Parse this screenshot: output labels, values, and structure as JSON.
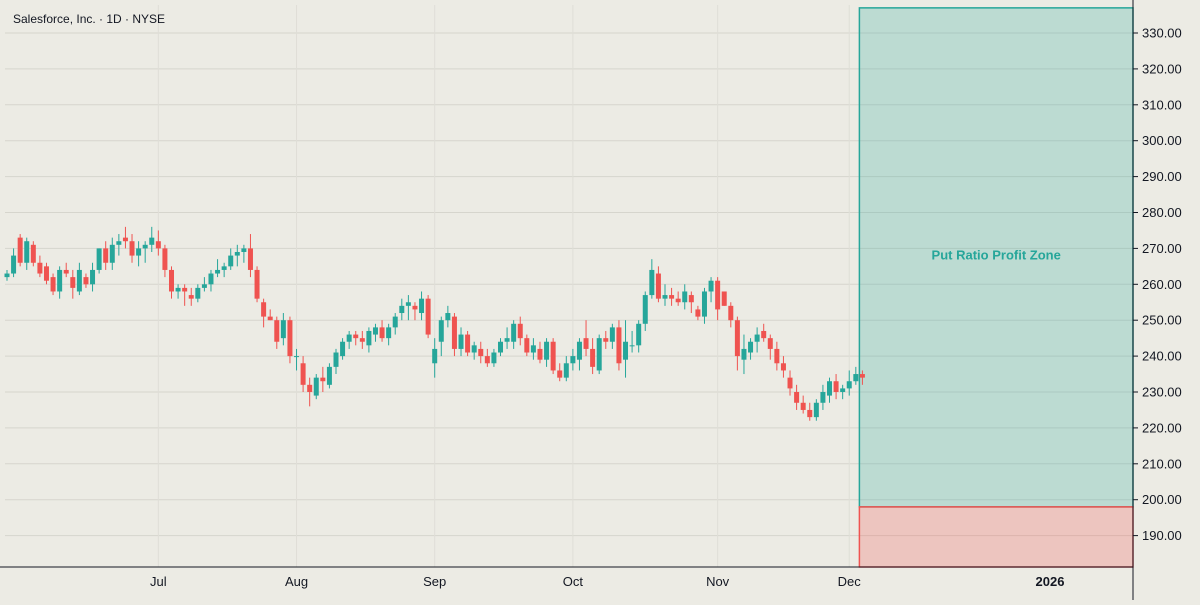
{
  "title": "Salesforce, Inc. · 1D · NYSE",
  "colors": {
    "up": "#26a69a",
    "down": "#ef5350",
    "profit_zone": "#26a69a",
    "loss_zone": "#ef5350",
    "background": "#ecebe4"
  },
  "chart_data": {
    "type": "candlestick",
    "title": "Salesforce, Inc. · 1D · NYSE",
    "ylim": [
      181,
      337
    ],
    "y_ticks": [
      190,
      200,
      210,
      220,
      230,
      240,
      250,
      260,
      270,
      280,
      290,
      300,
      310,
      320,
      330
    ],
    "y_tick_labels": [
      "190.00",
      "200.00",
      "210.00",
      "220.00",
      "230.00",
      "240.00",
      "250.00",
      "260.00",
      "270.00",
      "280.00",
      "290.00",
      "300.00",
      "310.00",
      "320.00",
      "330.00"
    ],
    "x_ticks": [
      {
        "label": "Jul",
        "index": 23
      },
      {
        "label": "Aug",
        "index": 44
      },
      {
        "label": "Sep",
        "index": 65
      },
      {
        "label": "Oct",
        "index": 86
      },
      {
        "label": "Nov",
        "index": 108
      },
      {
        "label": "Dec",
        "index": 128
      },
      {
        "label": "2026",
        "index": 150,
        "bold": true
      }
    ],
    "grid": true,
    "candles": [
      [
        262,
        264,
        261,
        263
      ],
      [
        263,
        270,
        262,
        268
      ],
      [
        273,
        274,
        265,
        266
      ],
      [
        266,
        273,
        264,
        272
      ],
      [
        271,
        272,
        265,
        266
      ],
      [
        266,
        268,
        262,
        263
      ],
      [
        265,
        266,
        260,
        261
      ],
      [
        262,
        263,
        257,
        258
      ],
      [
        258,
        265,
        256,
        264
      ],
      [
        264,
        266,
        262,
        263
      ],
      [
        262,
        264,
        256,
        259
      ],
      [
        258,
        266,
        257,
        264
      ],
      [
        262,
        263,
        259,
        260
      ],
      [
        260,
        266,
        258,
        264
      ],
      [
        264,
        270,
        263,
        270
      ],
      [
        270,
        272,
        264,
        266
      ],
      [
        266,
        273,
        264,
        271
      ],
      [
        271,
        274,
        268,
        272
      ],
      [
        273,
        276,
        270,
        272
      ],
      [
        272,
        274,
        266,
        268
      ],
      [
        268,
        272,
        265,
        270
      ],
      [
        270,
        272,
        266,
        271
      ],
      [
        271,
        276,
        269,
        273
      ],
      [
        272,
        275,
        268,
        270
      ],
      [
        270,
        271,
        262,
        264
      ],
      [
        264,
        265,
        256,
        258
      ],
      [
        258,
        260,
        256,
        259
      ],
      [
        259,
        260,
        254,
        258
      ],
      [
        257,
        259,
        254,
        256
      ],
      [
        256,
        260,
        255,
        259
      ],
      [
        259,
        262,
        258,
        260
      ],
      [
        260,
        264,
        258,
        263
      ],
      [
        263,
        267,
        262,
        264
      ],
      [
        264,
        266,
        262,
        265
      ],
      [
        265,
        270,
        264,
        268
      ],
      [
        268,
        271,
        265,
        269
      ],
      [
        269,
        271,
        266,
        270
      ],
      [
        270,
        274,
        262,
        264
      ],
      [
        264,
        265,
        255,
        256
      ],
      [
        255,
        256,
        248,
        251
      ],
      [
        251,
        253,
        250,
        250
      ],
      [
        250,
        251,
        242,
        244
      ],
      [
        245,
        252,
        243,
        250
      ],
      [
        250,
        251,
        238,
        240
      ],
      [
        240,
        242,
        236,
        240
      ],
      [
        238,
        240,
        230,
        232
      ],
      [
        232,
        234,
        226,
        230
      ],
      [
        229,
        235,
        228,
        234
      ],
      [
        234,
        237,
        230,
        233
      ],
      [
        232,
        238,
        231,
        237
      ],
      [
        237,
        242,
        235,
        241
      ],
      [
        240,
        245,
        239,
        244
      ],
      [
        244,
        247,
        242,
        246
      ],
      [
        246,
        247,
        243,
        245
      ],
      [
        245,
        247,
        242,
        244
      ],
      [
        243,
        248,
        241,
        247
      ],
      [
        246,
        249,
        244,
        248
      ],
      [
        248,
        250,
        244,
        245
      ],
      [
        245,
        249,
        243,
        248
      ],
      [
        248,
        252,
        246,
        251
      ],
      [
        252,
        256,
        250,
        254
      ],
      [
        254,
        257,
        250,
        255
      ],
      [
        254,
        255,
        250,
        253
      ],
      [
        252,
        258,
        250,
        256
      ],
      [
        256,
        257,
        245,
        246
      ],
      [
        238,
        245,
        234,
        242
      ],
      [
        244,
        251,
        240,
        250
      ],
      [
        250,
        254,
        248,
        252
      ],
      [
        251,
        252,
        240,
        242
      ],
      [
        242,
        248,
        240,
        246
      ],
      [
        246,
        247,
        240,
        241
      ],
      [
        241,
        244,
        239,
        243
      ],
      [
        242,
        244,
        238,
        240
      ],
      [
        240,
        242,
        237,
        238
      ],
      [
        238,
        242,
        237,
        241
      ],
      [
        241,
        245,
        240,
        244
      ],
      [
        244,
        248,
        242,
        245
      ],
      [
        244,
        250,
        242,
        249
      ],
      [
        249,
        251,
        243,
        245
      ],
      [
        245,
        246,
        240,
        241
      ],
      [
        241,
        245,
        239,
        243
      ],
      [
        242,
        244,
        238,
        239
      ],
      [
        239,
        245,
        237,
        244
      ],
      [
        244,
        245,
        235,
        236
      ],
      [
        236,
        238,
        233,
        234
      ],
      [
        234,
        240,
        233,
        238
      ],
      [
        238,
        242,
        236,
        240
      ],
      [
        239,
        245,
        236,
        244
      ],
      [
        245,
        250,
        240,
        242
      ],
      [
        242,
        245,
        235,
        237
      ],
      [
        236,
        246,
        235,
        245
      ],
      [
        245,
        247,
        242,
        244
      ],
      [
        244,
        249,
        242,
        248
      ],
      [
        248,
        250,
        236,
        238
      ],
      [
        239,
        250,
        234,
        244
      ],
      [
        243,
        247,
        241,
        243
      ],
      [
        243,
        250,
        241,
        249
      ],
      [
        249,
        258,
        247,
        257
      ],
      [
        257,
        267,
        256,
        264
      ],
      [
        263,
        265,
        255,
        256
      ],
      [
        256,
        260,
        254,
        257
      ],
      [
        257,
        259,
        254,
        256
      ],
      [
        256,
        258,
        254,
        255
      ],
      [
        255,
        260,
        253,
        258
      ],
      [
        257,
        258,
        252,
        255
      ],
      [
        253,
        254,
        250,
        251
      ],
      [
        251,
        259,
        249,
        258
      ],
      [
        258,
        262,
        255,
        261
      ],
      [
        261,
        262,
        250,
        253
      ],
      [
        258,
        258,
        254,
        254
      ],
      [
        254,
        255,
        248,
        250
      ],
      [
        250,
        251,
        236,
        240
      ],
      [
        239,
        246,
        235,
        242
      ],
      [
        241,
        245,
        239,
        244
      ],
      [
        244,
        248,
        241,
        246
      ],
      [
        247,
        249,
        244,
        245
      ],
      [
        245,
        246,
        239,
        242
      ],
      [
        242,
        244,
        236,
        238
      ],
      [
        238,
        240,
        234,
        236
      ],
      [
        234,
        236,
        229,
        231
      ],
      [
        230,
        232,
        225,
        227
      ],
      [
        227,
        229,
        224,
        225
      ],
      [
        225,
        227,
        222,
        223
      ],
      [
        223,
        228,
        222,
        227
      ],
      [
        227,
        232,
        225,
        230
      ],
      [
        229,
        234,
        227,
        233
      ],
      [
        233,
        235,
        228,
        230
      ],
      [
        230,
        232,
        228,
        231
      ],
      [
        231,
        236,
        229,
        233
      ],
      [
        233,
        237,
        232,
        235
      ],
      [
        235,
        236,
        232,
        234
      ]
    ],
    "annotations": [
      {
        "type": "zone",
        "label": "Put Ratio Profit Zone",
        "y_from": 198,
        "y_to": 337,
        "start_index": 130,
        "end_index": 158
      },
      {
        "type": "zone",
        "label": "",
        "y_from": 181,
        "y_to": 198,
        "start_index": 130,
        "end_index": 158
      }
    ]
  }
}
